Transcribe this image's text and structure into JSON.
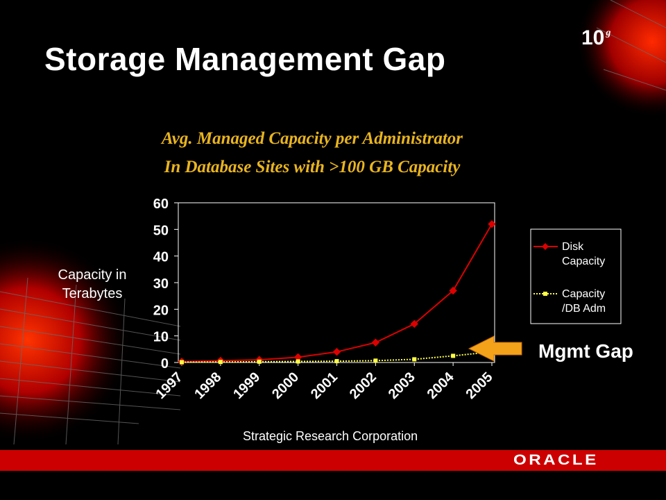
{
  "slide": {
    "title": "Storage Management Gap",
    "version": "10",
    "version_sup": "g",
    "subtitle_line1": "Avg. Managed Capacity per Administrator",
    "subtitle_line2": "In Database Sites with >100 GB Capacity",
    "annotation": "Mgmt Gap",
    "source": "Strategic Research Corporation",
    "logo": "ORACLE",
    "colors": {
      "background": "#000000",
      "accent_red": "#cc0000",
      "subtitle_gold": "#e9b51f",
      "arrow_orange": "#f5a21b"
    }
  },
  "chart_data": {
    "type": "line",
    "categories": [
      "1997",
      "1998",
      "1999",
      "2000",
      "2001",
      "2002",
      "2003",
      "2004",
      "2005"
    ],
    "ylabel": "Capacity in Terabytes",
    "ylim": [
      0,
      60
    ],
    "yticks": [
      "0",
      "10",
      "20",
      "30",
      "40",
      "50",
      "60"
    ],
    "grid": false,
    "legend_position": "right",
    "series": [
      {
        "name": "Disk Capacity",
        "legend_lines": [
          "Disk",
          "Capacity"
        ],
        "color": "#dd0000",
        "marker": "diamond",
        "values": [
          0.3,
          0.7,
          1.0,
          2.0,
          4.0,
          7.5,
          14.5,
          27.0,
          52.0
        ]
      },
      {
        "name": "Capacity /DB Adm",
        "legend_lines": [
          "Capacity",
          "/DB Adm"
        ],
        "color": "#ffff44",
        "marker": "square",
        "values": [
          0.1,
          0.2,
          0.3,
          0.4,
          0.5,
          0.7,
          1.2,
          2.5,
          4.0
        ]
      }
    ]
  }
}
